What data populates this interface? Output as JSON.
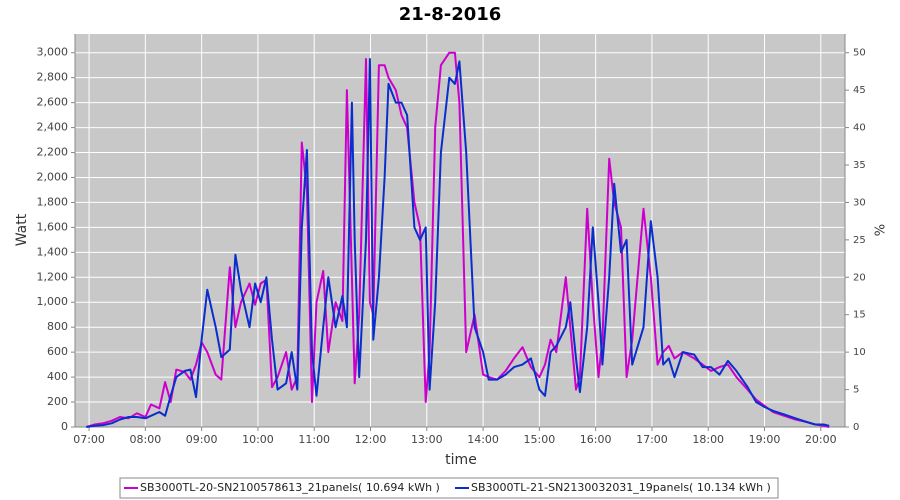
{
  "chart_data": {
    "type": "line",
    "title": "21-8-2016",
    "x_label": "time",
    "y_label": "Watt",
    "y2_label": "%",
    "x": [
      6.95,
      7.1,
      7.25,
      7.4,
      7.55,
      7.7,
      7.85,
      8.0,
      8.1,
      8.25,
      8.35,
      8.45,
      8.55,
      8.7,
      8.8,
      8.9,
      9.0,
      9.1,
      9.25,
      9.35,
      9.5,
      9.6,
      9.7,
      9.85,
      9.95,
      10.05,
      10.15,
      10.25,
      10.35,
      10.5,
      10.6,
      10.7,
      10.78,
      10.87,
      10.96,
      11.04,
      11.16,
      11.25,
      11.38,
      11.5,
      11.58,
      11.67,
      11.72,
      11.8,
      11.92,
      11.99,
      12.05,
      12.15,
      12.25,
      12.32,
      12.45,
      12.55,
      12.65,
      12.78,
      12.88,
      12.98,
      13.05,
      13.15,
      13.25,
      13.4,
      13.5,
      13.58,
      13.7,
      13.85,
      14.0,
      14.1,
      14.25,
      14.4,
      14.55,
      14.7,
      14.85,
      15.0,
      15.1,
      15.2,
      15.3,
      15.47,
      15.55,
      15.65,
      15.72,
      15.85,
      15.95,
      16.05,
      16.12,
      16.24,
      16.33,
      16.45,
      16.55,
      16.65,
      16.85,
      16.98,
      17.1,
      17.2,
      17.3,
      17.4,
      17.55,
      17.75,
      17.9,
      18.05,
      18.2,
      18.35,
      18.5,
      18.7,
      18.85,
      19.0,
      19.15,
      19.35,
      19.55,
      19.75,
      19.9,
      20.05,
      20.15
    ],
    "series": [
      {
        "name": "SB3000TL-20-SN2100578613_21panels( 10.694 kWh )",
        "color": "#cc00cc",
        "values": [
          0,
          20,
          30,
          50,
          80,
          70,
          110,
          80,
          180,
          150,
          360,
          200,
          460,
          440,
          380,
          500,
          680,
          600,
          420,
          380,
          1280,
          800,
          1000,
          1150,
          980,
          1150,
          1180,
          320,
          400,
          600,
          300,
          400,
          2280,
          1900,
          200,
          1000,
          1250,
          600,
          1000,
          850,
          2700,
          1200,
          350,
          900,
          2950,
          1000,
          900,
          2900,
          2900,
          2800,
          2700,
          2500,
          2400,
          1800,
          1600,
          200,
          600,
          2400,
          2900,
          3000,
          3000,
          2600,
          600,
          900,
          420,
          400,
          380,
          450,
          550,
          640,
          480,
          400,
          500,
          700,
          600,
          1200,
          800,
          300,
          400,
          1750,
          1000,
          400,
          700,
          2150,
          1800,
          1600,
          400,
          700,
          1750,
          1200,
          500,
          600,
          650,
          550,
          600,
          550,
          500,
          450,
          480,
          500,
          400,
          300,
          220,
          170,
          120,
          90,
          60,
          40,
          20,
          10,
          0
        ]
      },
      {
        "name": "SB3000TL-21-SN2130032031_19panels( 10.134 kWh )",
        "color": "#0a2ecc",
        "values": [
          0,
          10,
          15,
          30,
          60,
          80,
          80,
          70,
          90,
          120,
          90,
          250,
          400,
          450,
          460,
          240,
          700,
          1100,
          800,
          560,
          620,
          1380,
          1100,
          800,
          1150,
          1000,
          1200,
          700,
          300,
          350,
          600,
          300,
          1600,
          2220,
          600,
          250,
          800,
          1200,
          800,
          1050,
          800,
          2600,
          1500,
          400,
          1500,
          2950,
          700,
          1200,
          2000,
          2750,
          2600,
          2600,
          2500,
          1600,
          1500,
          1600,
          300,
          1000,
          2200,
          2800,
          2750,
          2930,
          2200,
          800,
          600,
          380,
          380,
          420,
          480,
          500,
          550,
          300,
          250,
          600,
          650,
          800,
          1000,
          550,
          280,
          800,
          1600,
          1000,
          500,
          1200,
          1950,
          1400,
          1500,
          500,
          800,
          1650,
          1200,
          500,
          550,
          400,
          600,
          580,
          480,
          480,
          420,
          530,
          450,
          320,
          200,
          160,
          130,
          100,
          70,
          40,
          20,
          20,
          10
        ]
      }
    ],
    "xlim": [
      6.75,
      20.43
    ],
    "xticks": [
      {
        "value": 7,
        "label": "07:00"
      },
      {
        "value": 8,
        "label": "08:00"
      },
      {
        "value": 9,
        "label": "09:00"
      },
      {
        "value": 10,
        "label": "10:00"
      },
      {
        "value": 11,
        "label": "11:00"
      },
      {
        "value": 12,
        "label": "12:00"
      },
      {
        "value": 13,
        "label": "13:00"
      },
      {
        "value": 14,
        "label": "14:00"
      },
      {
        "value": 15,
        "label": "15:00"
      },
      {
        "value": 16,
        "label": "16:00"
      },
      {
        "value": 17,
        "label": "17:00"
      },
      {
        "value": 18,
        "label": "18:00"
      },
      {
        "value": 19,
        "label": "19:00"
      },
      {
        "value": 20,
        "label": "20:00"
      }
    ],
    "ylim": [
      0,
      3150
    ],
    "yticks": [
      0,
      200,
      400,
      600,
      800,
      {
        "value": 1000,
        "label": "1,000"
      },
      {
        "value": 1200,
        "label": "1,200"
      },
      {
        "value": 1400,
        "label": "1,400"
      },
      {
        "value": 1600,
        "label": "1,600"
      },
      {
        "value": 1800,
        "label": "1,800"
      },
      {
        "value": 2000,
        "label": "2,000"
      },
      {
        "value": 2200,
        "label": "2,200"
      },
      {
        "value": 2400,
        "label": "2,400"
      },
      {
        "value": 2600,
        "label": "2,600"
      },
      {
        "value": 2800,
        "label": "2,800"
      },
      {
        "value": 3000,
        "label": "3,000"
      }
    ],
    "y2lim": [
      0,
      52.5
    ],
    "y2ticks": [
      0,
      5,
      10,
      15,
      20,
      25,
      30,
      35,
      40,
      45,
      50
    ],
    "grid": true,
    "legend": "bottom"
  }
}
